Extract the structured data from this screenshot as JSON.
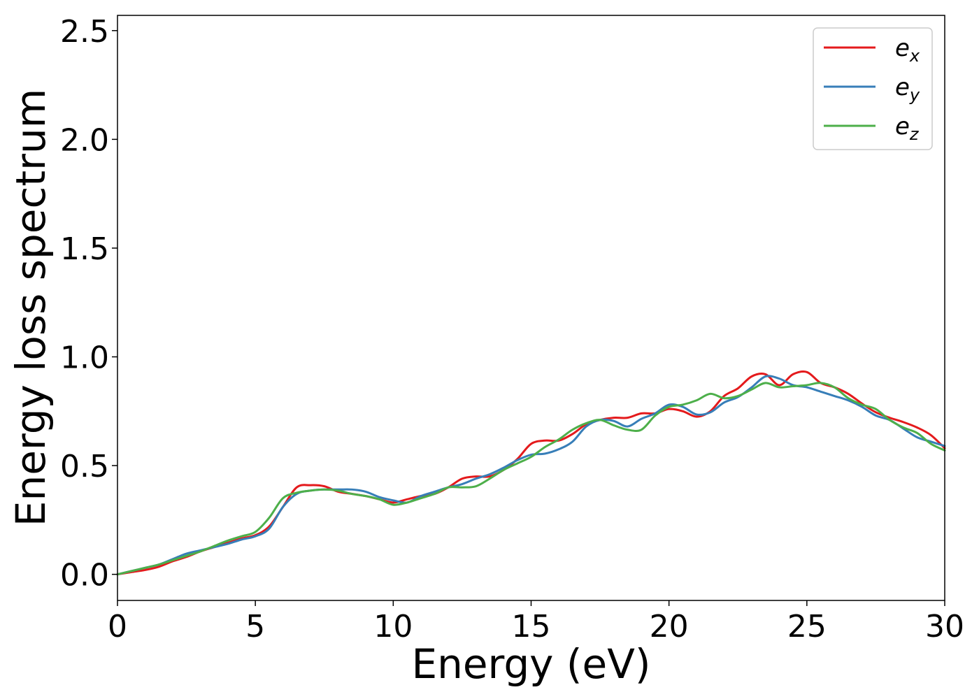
{
  "chart_data": {
    "type": "line",
    "xlabel": "Energy (eV)",
    "ylabel": "Energy loss spectrum",
    "xlim": [
      0,
      30
    ],
    "ylim": [
      -0.12,
      2.57
    ],
    "xticks": [
      0,
      5,
      10,
      15,
      20,
      25,
      30
    ],
    "yticks": [
      0.0,
      0.5,
      1.0,
      1.5,
      2.0,
      2.5
    ],
    "xtick_labels": [
      "0",
      "5",
      "10",
      "15",
      "20",
      "25",
      "30"
    ],
    "ytick_labels": [
      "0.0",
      "0.5",
      "1.0",
      "1.5",
      "2.0",
      "2.5"
    ],
    "grid": false,
    "legend_position": "top-right",
    "series": [
      {
        "name": "e_x",
        "label_base": "e",
        "label_sub": "x",
        "color": "#e41a1c",
        "x": [
          0,
          0.5,
          1,
          1.5,
          2,
          2.5,
          3,
          3.5,
          4,
          4.5,
          5,
          5.5,
          6,
          6.5,
          7,
          7.5,
          8,
          8.5,
          9,
          9.5,
          10,
          10.5,
          11,
          11.5,
          12,
          12.5,
          13,
          13.5,
          14,
          14.5,
          15,
          15.5,
          16,
          16.5,
          17,
          17.5,
          18,
          18.5,
          19,
          19.5,
          20,
          20.5,
          21,
          21.5,
          22,
          22.5,
          23,
          23.5,
          24,
          24.5,
          25,
          25.5,
          26,
          26.5,
          27,
          27.5,
          28,
          28.5,
          29,
          29.5,
          30
        ],
        "y": [
          0.0,
          0.01,
          0.02,
          0.035,
          0.06,
          0.08,
          0.105,
          0.125,
          0.145,
          0.165,
          0.18,
          0.22,
          0.31,
          0.4,
          0.41,
          0.405,
          0.38,
          0.37,
          0.36,
          0.345,
          0.33,
          0.345,
          0.36,
          0.37,
          0.4,
          0.44,
          0.45,
          0.45,
          0.48,
          0.53,
          0.6,
          0.615,
          0.615,
          0.645,
          0.69,
          0.71,
          0.72,
          0.72,
          0.74,
          0.74,
          0.76,
          0.75,
          0.725,
          0.75,
          0.82,
          0.855,
          0.91,
          0.92,
          0.87,
          0.92,
          0.93,
          0.88,
          0.86,
          0.83,
          0.785,
          0.745,
          0.72,
          0.7,
          0.675,
          0.64,
          0.58
        ]
      },
      {
        "name": "e_y",
        "label_base": "e",
        "label_sub": "y",
        "color": "#377eb8",
        "x": [
          0,
          0.5,
          1,
          1.5,
          2,
          2.5,
          3,
          3.5,
          4,
          4.5,
          5,
          5.5,
          6,
          6.5,
          7,
          7.5,
          8,
          8.5,
          9,
          9.5,
          10,
          10.5,
          11,
          11.5,
          12,
          12.5,
          13,
          13.5,
          14,
          14.5,
          15,
          15.5,
          16,
          16.5,
          17,
          17.5,
          18,
          18.5,
          19,
          19.5,
          20,
          20.5,
          21,
          21.5,
          22,
          22.5,
          23,
          23.5,
          24,
          24.5,
          25,
          25.5,
          26,
          26.5,
          27,
          27.5,
          28,
          28.5,
          29,
          29.5,
          30
        ],
        "y": [
          0.0,
          0.015,
          0.03,
          0.045,
          0.07,
          0.095,
          0.11,
          0.125,
          0.14,
          0.16,
          0.175,
          0.21,
          0.31,
          0.37,
          0.385,
          0.39,
          0.39,
          0.39,
          0.38,
          0.355,
          0.34,
          0.33,
          0.36,
          0.38,
          0.4,
          0.415,
          0.44,
          0.46,
          0.49,
          0.525,
          0.55,
          0.555,
          0.575,
          0.61,
          0.68,
          0.71,
          0.705,
          0.68,
          0.715,
          0.74,
          0.78,
          0.77,
          0.735,
          0.745,
          0.79,
          0.815,
          0.86,
          0.91,
          0.9,
          0.87,
          0.86,
          0.84,
          0.82,
          0.8,
          0.77,
          0.73,
          0.71,
          0.67,
          0.63,
          0.61,
          0.59
        ]
      },
      {
        "name": "e_z",
        "label_base": "e",
        "label_sub": "z",
        "color": "#4daf4a",
        "x": [
          0,
          0.5,
          1,
          1.5,
          2,
          2.5,
          3,
          3.5,
          4,
          4.5,
          5,
          5.5,
          6,
          6.5,
          7,
          7.5,
          8,
          8.5,
          9,
          9.5,
          10,
          10.5,
          11,
          11.5,
          12,
          12.5,
          13,
          13.5,
          14,
          14.5,
          15,
          15.5,
          16,
          16.5,
          17,
          17.5,
          18,
          18.5,
          19,
          19.5,
          20,
          20.5,
          21,
          21.5,
          22,
          22.5,
          23,
          23.5,
          24,
          24.5,
          25,
          25.5,
          26,
          26.5,
          27,
          27.5,
          28,
          28.5,
          29,
          29.5,
          30
        ],
        "y": [
          0.0,
          0.015,
          0.03,
          0.045,
          0.065,
          0.085,
          0.105,
          0.13,
          0.155,
          0.175,
          0.195,
          0.26,
          0.35,
          0.375,
          0.385,
          0.39,
          0.385,
          0.37,
          0.36,
          0.345,
          0.32,
          0.33,
          0.35,
          0.37,
          0.4,
          0.4,
          0.405,
          0.44,
          0.48,
          0.51,
          0.54,
          0.585,
          0.62,
          0.665,
          0.695,
          0.71,
          0.685,
          0.665,
          0.665,
          0.73,
          0.77,
          0.78,
          0.8,
          0.83,
          0.81,
          0.82,
          0.85,
          0.88,
          0.86,
          0.865,
          0.87,
          0.88,
          0.86,
          0.81,
          0.78,
          0.76,
          0.71,
          0.675,
          0.65,
          0.6,
          0.57
        ]
      }
    ]
  }
}
